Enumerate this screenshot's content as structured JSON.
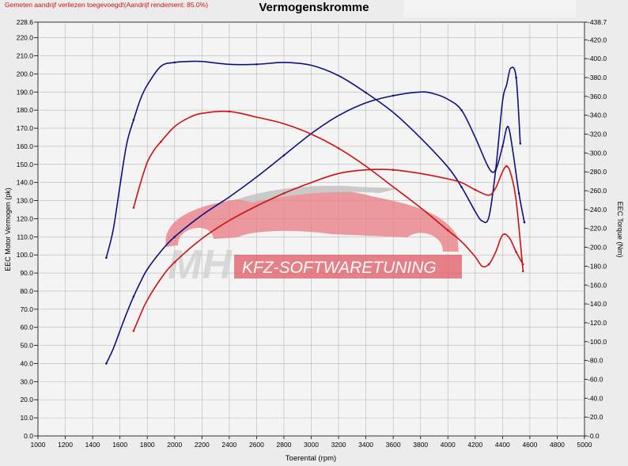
{
  "header": {
    "notice": "Gemeten aandrijf verliezen toegevoegd!(Aandrijf rendement: 85.0%)",
    "title": "Vermogenskromme"
  },
  "watermark": {
    "text": "KFZ-SOFTWARETUNING",
    "logo_letters": "MH"
  },
  "colors": {
    "original": "#cc1111",
    "tuned": "#101080",
    "grid": "#b8b8b8",
    "plot_bg": "#f4f4f4",
    "watermark": "#e05a64"
  },
  "chart_data": {
    "type": "line",
    "title": "Vermogenskromme",
    "xlabel": "Toerental (rpm)",
    "ylabel_left": "EEC Motor Vermogen (pk)",
    "ylabel_right": "EEC Torque (Nm)",
    "xlim": [
      1000,
      5000
    ],
    "ylim_left": [
      0,
      228.6
    ],
    "ylim_right": [
      0,
      438.7
    ],
    "grid": true,
    "x_ticks": [
      1000,
      1200,
      1400,
      1600,
      1800,
      2000,
      2200,
      2400,
      2600,
      2800,
      3000,
      3200,
      3400,
      3600,
      3800,
      4000,
      4200,
      4400,
      4600,
      4800,
      5000
    ],
    "y_ticks_left": [
      "0.0",
      "10.0",
      "20.0",
      "30.0",
      "40.0",
      "50.0",
      "60.0",
      "70.0",
      "80.0",
      "90.0",
      "100.0",
      "110.0",
      "120.0",
      "130.0",
      "140.0",
      "150.0",
      "160.0",
      "170.0",
      "180.0",
      "190.0",
      "200.0",
      "210.0",
      "220.0",
      "228.6"
    ],
    "y_ticks_right": [
      "0.0",
      "20.0",
      "40.0",
      "60.0",
      "80.0",
      "100.0",
      "120.0",
      "140.0",
      "160.0",
      "180.0",
      "200.0",
      "220.0",
      "240.0",
      "260.0",
      "280.0",
      "300.0",
      "320.0",
      "340.0",
      "360.0",
      "380.0",
      "400.0",
      "420.0",
      "438.7"
    ],
    "series": [
      {
        "role": "tuned-torque",
        "axis": "right",
        "color": "#101080",
        "x": [
          1500,
          1550,
          1600,
          1650,
          1700,
          1750,
          1800,
          1900,
          2000,
          2100,
          2200,
          2400,
          2600,
          2800,
          3000,
          3200,
          3400,
          3600,
          3800,
          4000,
          4100,
          4200,
          4250,
          4300,
          4350,
          4400,
          4430,
          4460,
          4500,
          4530
        ],
        "y": [
          189,
          218,
          265,
          310,
          335,
          357,
          372,
          392,
          396,
          397,
          397,
          394,
          394,
          396,
          393,
          382,
          364,
          343,
          316,
          285,
          264,
          238,
          228,
          232,
          282,
          355,
          372,
          390,
          380,
          310
        ]
      },
      {
        "role": "tuned-power",
        "axis": "left",
        "color": "#101080",
        "x": [
          1500,
          1550,
          1600,
          1650,
          1700,
          1750,
          1800,
          1900,
          2000,
          2200,
          2400,
          2600,
          2800,
          3000,
          3200,
          3400,
          3600,
          3800,
          3900,
          4000,
          4100,
          4200,
          4300,
          4350,
          4400,
          4430,
          4450,
          4480,
          4520,
          4560
        ],
        "y": [
          40,
          48,
          58,
          68,
          77,
          85,
          92,
          102,
          110,
          122,
          132,
          143,
          155,
          167,
          177,
          184,
          188,
          190,
          189,
          186,
          180,
          165,
          148,
          147,
          160,
          170,
          169,
          155,
          134,
          118
        ]
      },
      {
        "role": "original-torque",
        "axis": "right",
        "color": "#cc1111",
        "x": [
          1700,
          1750,
          1800,
          1850,
          1900,
          2000,
          2100,
          2200,
          2400,
          2600,
          2800,
          3000,
          3200,
          3400,
          3600,
          3800,
          4000,
          4100,
          4200,
          4250,
          4300,
          4350,
          4400,
          4450,
          4500,
          4550
        ],
        "y": [
          242,
          268,
          290,
          303,
          312,
          328,
          337,
          342,
          344,
          338,
          331,
          320,
          305,
          286,
          264,
          242,
          218,
          206,
          190,
          180,
          182,
          195,
          213,
          210,
          195,
          182
        ]
      },
      {
        "role": "original-power",
        "axis": "left",
        "color": "#cc1111",
        "x": [
          1700,
          1750,
          1800,
          1900,
          2000,
          2200,
          2400,
          2600,
          2800,
          3000,
          3200,
          3400,
          3600,
          3800,
          4000,
          4100,
          4200,
          4300,
          4350,
          4400,
          4430,
          4460,
          4500,
          4550
        ],
        "y": [
          58,
          67,
          75,
          87,
          96,
          109,
          119,
          127,
          134,
          140,
          145,
          147,
          147,
          145,
          142,
          140,
          136,
          133,
          137,
          146,
          149,
          145,
          130,
          91
        ]
      }
    ]
  }
}
